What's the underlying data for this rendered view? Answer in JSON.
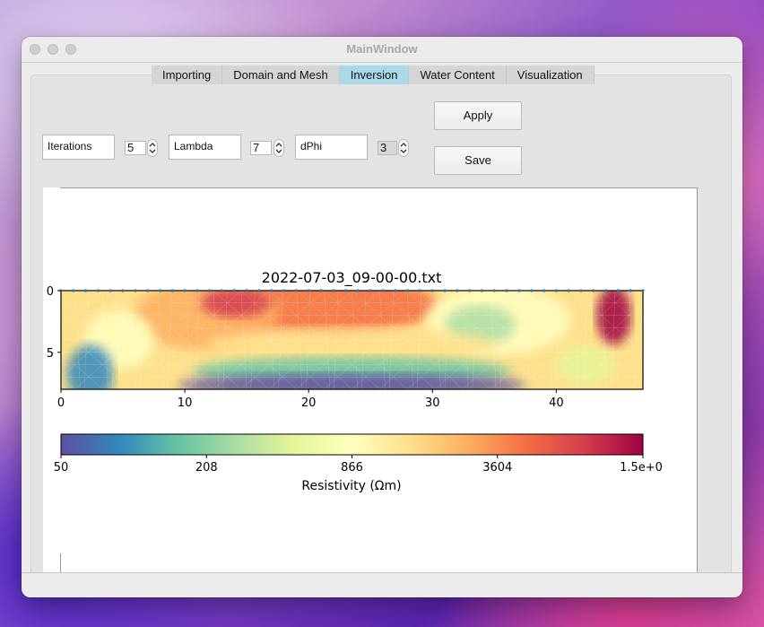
{
  "window": {
    "title": "MainWindow"
  },
  "tabs": [
    {
      "label": "Importing",
      "active": false
    },
    {
      "label": "Domain and Mesh",
      "active": false
    },
    {
      "label": "Inversion",
      "active": true
    },
    {
      "label": "Water Content",
      "active": false
    },
    {
      "label": "Visualization",
      "active": false
    }
  ],
  "params": {
    "iterations": {
      "label": "Iterations",
      "value": "5"
    },
    "lambda": {
      "label": "Lambda",
      "value": "7"
    },
    "dphi": {
      "label": "dPhi",
      "value": "3"
    }
  },
  "buttons": {
    "apply": "Apply",
    "save": "Save"
  },
  "chart_data": {
    "type": "heatmap",
    "title": "2022-07-03_09-00-00.txt",
    "xlabel": "",
    "ylabel": "",
    "xlim": [
      0,
      47
    ],
    "ylim": [
      8,
      0
    ],
    "x_ticks": [
      "0",
      "10",
      "20",
      "30",
      "40"
    ],
    "y_ticks": [
      "0",
      "5"
    ],
    "colorbar": {
      "label": "Resistivity (Ωm)",
      "ticks": [
        "50",
        "208",
        "866",
        "3604",
        "1.5e+0"
      ],
      "colormap": [
        "#5e4fa2",
        "#3288bd",
        "#66c2a5",
        "#abdda4",
        "#e6f598",
        "#ffffbf",
        "#fee08b",
        "#fdae61",
        "#f46d43",
        "#d53e4f",
        "#9e0142"
      ]
    },
    "electrodes": {
      "count": 48,
      "color": "#1f77b4"
    }
  }
}
